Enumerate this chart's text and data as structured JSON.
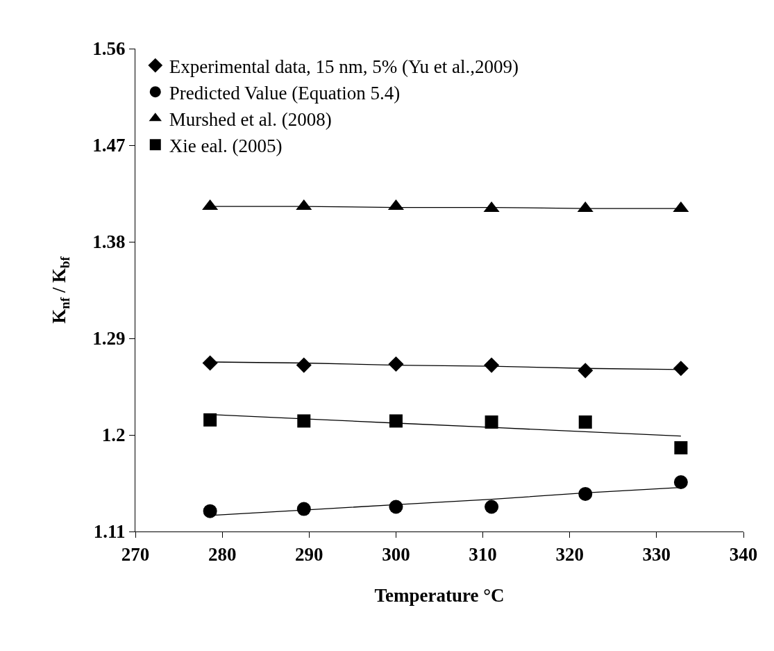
{
  "chart_data": {
    "type": "scatter",
    "xlabel": "Temperature °C",
    "ylabel": "K$_{nf}$ / K$_{bf}$",
    "xlim": [
      270,
      340
    ],
    "xticks": [
      270,
      280,
      290,
      300,
      310,
      320,
      330,
      340
    ],
    "ylim": [
      1.11,
      1.56
    ],
    "yticks": [
      1.11,
      1.2,
      1.29,
      1.38,
      1.47,
      1.56
    ],
    "x": [
      278.6,
      289.4,
      300,
      311,
      321.8,
      332.8
    ],
    "grid": false,
    "legend": "top left",
    "series": [
      {
        "name": "Experimental data, 15 nm, 5% (Yu et al.,2009)",
        "marker": "diamond",
        "color": "#000000",
        "values": [
          1.267,
          1.265,
          1.266,
          1.265,
          1.26,
          1.262
        ]
      },
      {
        "name": "Predicted Value (Equation 5.4)",
        "marker": "circle",
        "color": "#000000",
        "values": [
          1.129,
          1.131,
          1.133,
          1.133,
          1.145,
          1.156
        ]
      },
      {
        "name": "Murshed et al. (2008)",
        "marker": "triangle",
        "color": "#000000",
        "values": [
          1.413,
          1.413,
          1.413,
          1.411,
          1.411,
          1.411
        ]
      },
      {
        "name": "Xie eal. (2005)",
        "marker": "square",
        "color": "#000000",
        "values": [
          1.214,
          1.213,
          1.213,
          1.212,
          1.212,
          1.188
        ]
      },
      {
        "type": "line",
        "marker": "none",
        "color": "#000000",
        "values": [
          1.268,
          1.267,
          1.265,
          1.264,
          1.262,
          1.261
        ]
      },
      {
        "type": "line",
        "marker": "none",
        "color": "#000000",
        "values": [
          1.125,
          1.13,
          1.135,
          1.14,
          1.146,
          1.151
        ]
      },
      {
        "type": "line",
        "marker": "none",
        "color": "#000000",
        "values": [
          1.413,
          1.413,
          1.412,
          1.412,
          1.411,
          1.411
        ]
      },
      {
        "type": "line",
        "marker": "none",
        "color": "#000000",
        "values": [
          1.219,
          1.215,
          1.211,
          1.207,
          1.203,
          1.199
        ]
      }
    ]
  }
}
